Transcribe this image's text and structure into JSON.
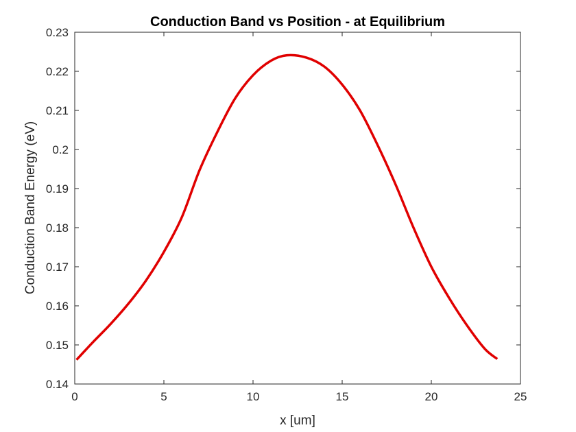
{
  "chart_data": {
    "type": "line",
    "title": "Conduction Band vs Position - at Equilibrium",
    "xlabel": "x [um]",
    "ylabel": "Conduction Band Energy (eV)",
    "xlim": [
      0,
      25
    ],
    "ylim": [
      0.14,
      0.23
    ],
    "x_ticks": [
      0,
      5,
      10,
      15,
      20,
      25
    ],
    "y_ticks": [
      0.14,
      0.15,
      0.16,
      0.17,
      0.18,
      0.19,
      0.2,
      0.21,
      0.22,
      0.23
    ],
    "x_tick_labels": [
      "0",
      "5",
      "10",
      "15",
      "20",
      "25"
    ],
    "y_tick_labels": [
      "0.14",
      "0.15",
      "0.16",
      "0.17",
      "0.18",
      "0.19",
      "0.2",
      "0.21",
      "0.22",
      "0.23"
    ],
    "grid": false,
    "legend": "none",
    "colors": {
      "line": "#e00000",
      "axes": "#262626",
      "background": "#ffffff"
    },
    "series": [
      {
        "x": [
          0.1,
          1,
          2,
          3,
          4,
          5,
          6,
          7,
          8,
          9,
          10,
          11,
          11.9,
          13,
          14,
          15,
          16,
          17,
          18,
          19,
          20,
          21,
          22,
          23,
          23.7
        ],
        "y": [
          0.1462,
          0.1506,
          0.1553,
          0.1605,
          0.1665,
          0.1738,
          0.1826,
          0.1947,
          0.2045,
          0.2131,
          0.219,
          0.2227,
          0.2241,
          0.2235,
          0.2212,
          0.2166,
          0.21,
          0.201,
          0.191,
          0.18,
          0.17,
          0.162,
          0.155,
          0.149,
          0.1464
        ]
      }
    ]
  }
}
